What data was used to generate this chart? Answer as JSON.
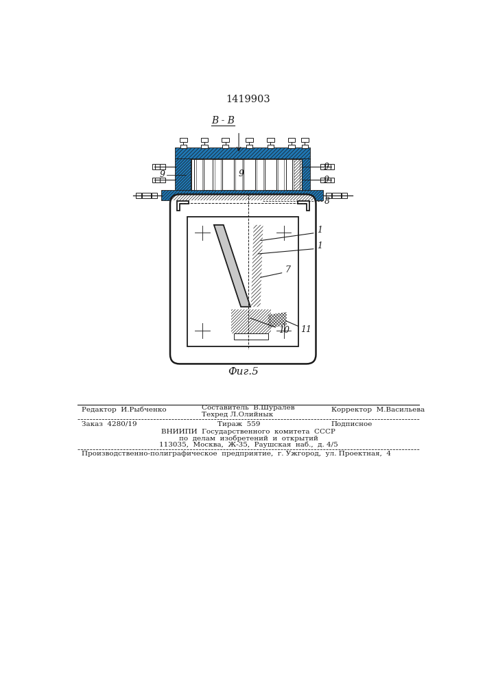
{
  "patent_number": "1419903",
  "fig_label": "Фиг.5",
  "section_label": "В - В",
  "bg_color": "#ffffff",
  "lc": "#1a1a1a",
  "footer": {
    "editor": "Редактор  И.Рыбченко",
    "author": "Составитель  В.Шуралев",
    "techred": "Техред Л.Олийнык",
    "corrector": "Корректор  М.Васильева",
    "order": "Заказ  4280/19",
    "circulation": "Тираж  559",
    "subscription": "Подписное",
    "vniip1": "ВНИИПИ  Государственного  комитета  СССР",
    "vniip2": "по  делам  изобретений  и  открытий",
    "vniip3": "113035,  Москва,  Ж-35,  Раушская  наб.,  д. 4/5",
    "plant": "Производственно-полиграфическое  предприятие,  г. Ужгород,  ул. Проектная,  4"
  }
}
